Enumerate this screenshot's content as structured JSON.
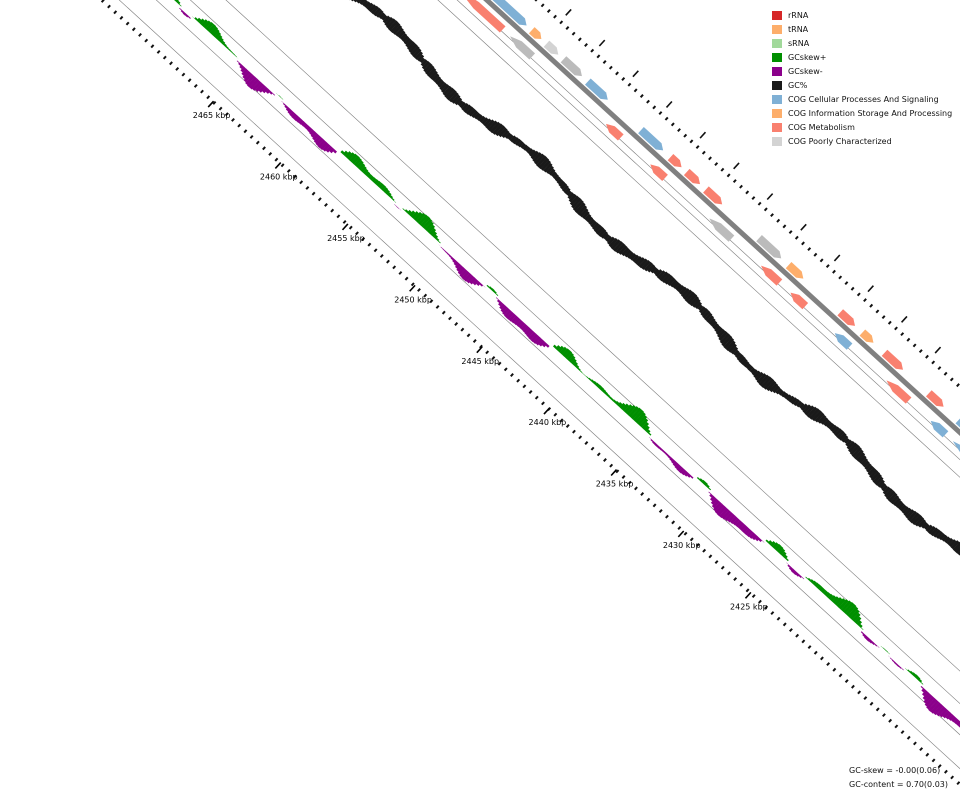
{
  "ticks": [
    "2465 kbp",
    "2460 kbp",
    "2455 kbp",
    "2450 kbp",
    "2445 kbp",
    "2440 kbp",
    "2435 kbp",
    "2430 kbp",
    "2425 kbp"
  ],
  "legend": [
    {
      "label": "rRNA",
      "color": "#d62728"
    },
    {
      "label": "tRNA",
      "color": "#fdae6b"
    },
    {
      "label": "sRNA",
      "color": "#a1d99b"
    },
    {
      "label": "GCskew+",
      "color": "#008f00"
    },
    {
      "label": "GCskew-",
      "color": "#8b008b"
    },
    {
      "label": "GC%",
      "color": "#1a1a1a"
    },
    {
      "label": "COG Cellular Processes And Signaling",
      "color": "#7fb0d5"
    },
    {
      "label": "COG Information Storage And Processing",
      "color": "#fdae6b"
    },
    {
      "label": "COG Metabolism",
      "color": "#f9806f"
    },
    {
      "label": "COG Poorly Characterized",
      "color": "#d3d3d3"
    }
  ],
  "stats": {
    "gc_skew": "GC-skew = -0.00(0.06)",
    "gc_content": "GC-content = 0.70(0.03)"
  },
  "colors": {
    "gene_grey": "#bbbbbb",
    "backbone": "#808080",
    "track_line": "#7a7a7a"
  }
}
